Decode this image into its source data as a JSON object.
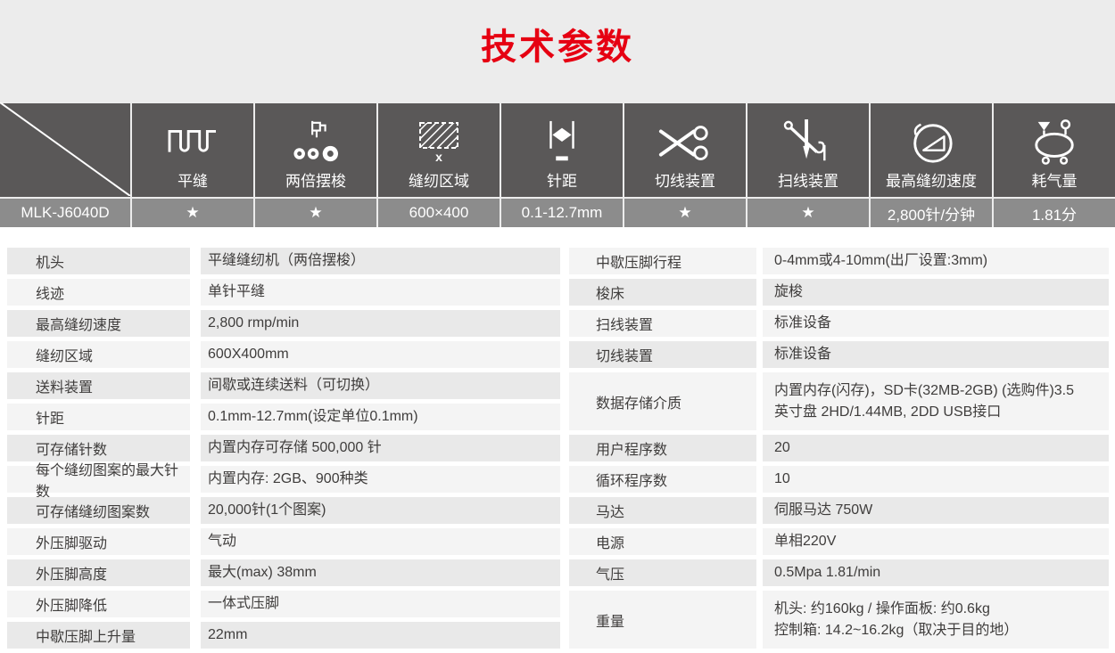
{
  "title": "技术参数",
  "colors": {
    "accent_red": "#e60012",
    "header_dark": "#5a5858",
    "header_value_gray": "#8c8c8c",
    "row_dark": "#e9e9e9",
    "row_light": "#f4f4f4"
  },
  "header": {
    "model": "MLK-J6040D",
    "columns": [
      {
        "icon": "flat-seam-icon",
        "label": "平缝",
        "value": "★"
      },
      {
        "icon": "double-shuttle-icon",
        "label": "两倍摆梭",
        "value": "★"
      },
      {
        "icon": "sewing-area-icon",
        "label": "缝纫区域",
        "value": "600×400"
      },
      {
        "icon": "stitch-length-icon",
        "label": "针距",
        "value": "0.1-12.7mm"
      },
      {
        "icon": "thread-trimmer-icon",
        "label": "切线装置",
        "value": "★"
      },
      {
        "icon": "thread-wiper-icon",
        "label": "扫线装置",
        "value": "★"
      },
      {
        "icon": "max-speed-icon",
        "label": "最高缝纫速度",
        "value": "2,800针/分钟"
      },
      {
        "icon": "air-consumption-icon",
        "label": "耗气量",
        "value": "1.81分"
      }
    ]
  },
  "spec_table": {
    "left": [
      {
        "label": "机头",
        "value": "平缝缝纫机（两倍摆梭）"
      },
      {
        "label": "线迹",
        "value": "单针平缝"
      },
      {
        "label": "最高缝纫速度",
        "value": "2,800 rmp/min"
      },
      {
        "label": "缝纫区域",
        "value": "600X400mm"
      },
      {
        "label": "送料装置",
        "value": "间歇或连续送料（可切换）"
      },
      {
        "label": "针距",
        "value": "0.1mm-12.7mm(设定单位0.1mm)"
      },
      {
        "label": "可存储针数",
        "value": "内置内存可存储  500,000 针"
      },
      {
        "label": "每个缝纫图案的最大针数",
        "value": "内置内存: 2GB、900种类"
      },
      {
        "label": "可存储缝纫图案数",
        "value": "20,000针(1个图案)"
      },
      {
        "label": "外压脚驱动",
        "value": "气动"
      },
      {
        "label": "外压脚高度",
        "value": "最大(max) 38mm"
      },
      {
        "label": "外压脚降低",
        "value": "一体式压脚"
      },
      {
        "label": "中歇压脚上升量",
        "value": "22mm"
      }
    ],
    "right": [
      {
        "label": "中歇压脚行程",
        "value": "0-4mm或4-10mm(出厂设置:3mm)"
      },
      {
        "label": "梭床",
        "value": "旋梭"
      },
      {
        "label": "扫线装置",
        "value": "标准设备"
      },
      {
        "label": "切线装置",
        "value": "标准设备"
      },
      {
        "label": "数据存储介质",
        "tall": true,
        "value_lines": [
          "内置内存(闪存)，SD卡(32MB-2GB) (选购件)3.5",
          "英寸盘  2HD/1.44MB, 2DD  USB接口"
        ]
      },
      {
        "label": "用户程序数",
        "value": "20"
      },
      {
        "label": "循环程序数",
        "value": "10"
      },
      {
        "label": "马达",
        "value": "伺服马达 750W"
      },
      {
        "label": "电源",
        "value": "单相220V"
      },
      {
        "label": "气压",
        "value": "0.5Mpa 1.81/min"
      },
      {
        "label": "重量",
        "tall": true,
        "value_lines": [
          "机头: 约160kg  /  操作面板: 约0.6kg",
          "控制箱: 14.2~16.2kg（取决于目的地）"
        ]
      }
    ]
  }
}
